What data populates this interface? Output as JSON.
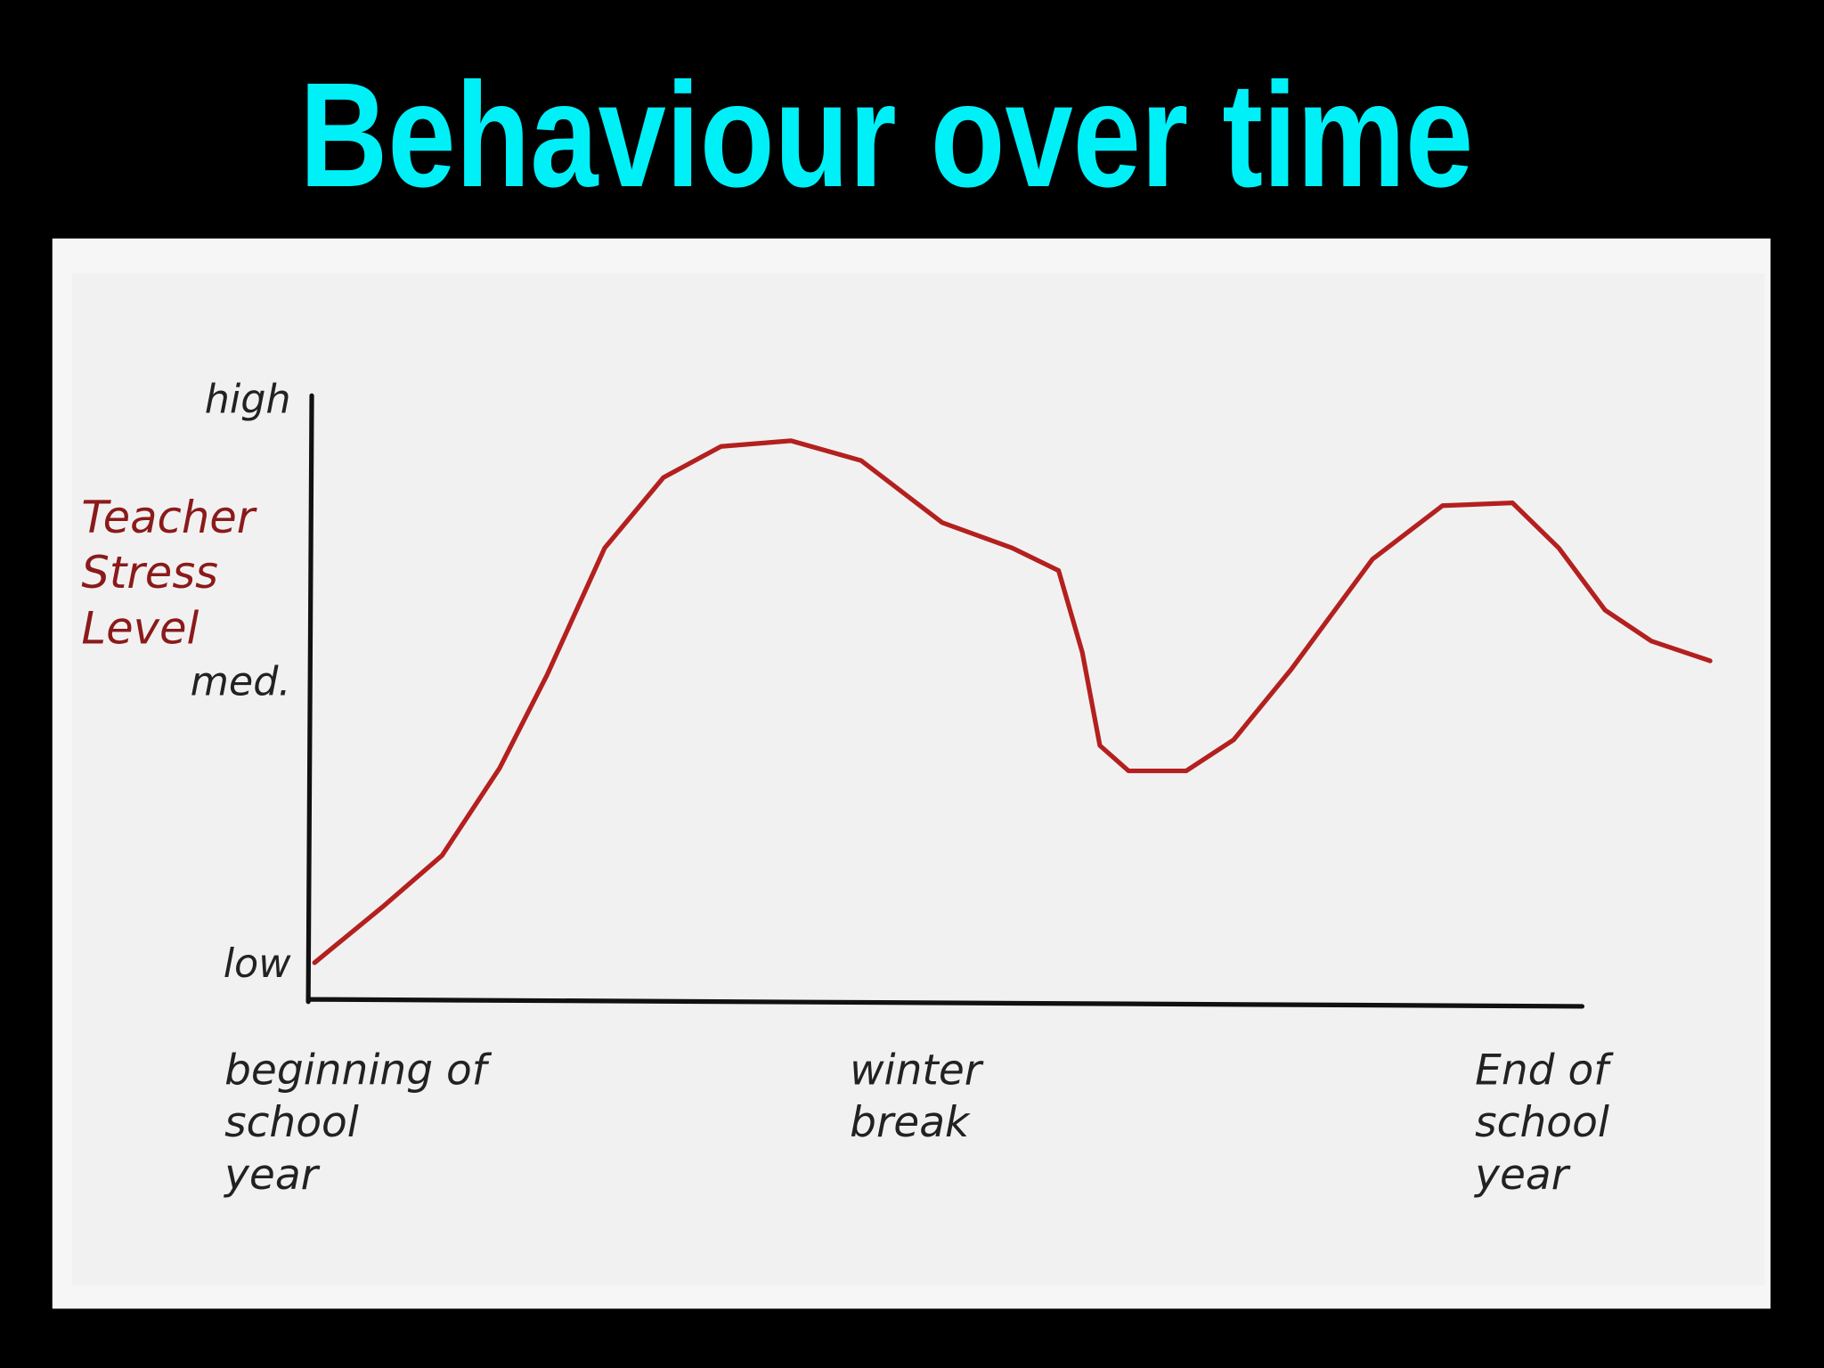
{
  "chart_data": {
    "type": "line",
    "title": "Behaviour over time",
    "y_label": "Teacher\nStress\nLevel",
    "x": [
      0.5,
      6,
      10.7,
      15.3,
      19.1,
      23.7,
      28.4,
      33,
      38.6,
      44.2,
      50.7,
      56.3,
      60,
      61.9,
      63.3,
      65.6,
      70.2,
      74,
      78.6,
      85.1,
      90.7,
      96.3,
      100,
      103.7,
      107.4,
      112.1
    ],
    "series": [
      {
        "color": "#b3201e",
        "values": [
          0.01,
          0.21,
          0.39,
          0.7,
          1.03,
          1.48,
          1.73,
          1.84,
          1.86,
          1.79,
          1.57,
          1.48,
          1.4,
          1.11,
          0.78,
          0.69,
          0.69,
          0.8,
          1.05,
          1.44,
          1.63,
          1.64,
          1.48,
          1.26,
          1.15,
          1.08
        ]
      }
    ],
    "xlim": [
      0,
      112.1
    ],
    "ylim": [
      -0.12,
      2.02
    ],
    "xticks": [
      {
        "value": 0,
        "label": "beginning of\nschool\nyear"
      },
      {
        "value": 50,
        "label": "winter\nbreak"
      },
      {
        "value": 100,
        "label": "End of\nschool\nyear"
      }
    ],
    "yticks": [
      {
        "value": 0,
        "label": "low"
      },
      {
        "value": 1,
        "label": "med."
      },
      {
        "value": 2,
        "label": "high"
      }
    ]
  }
}
